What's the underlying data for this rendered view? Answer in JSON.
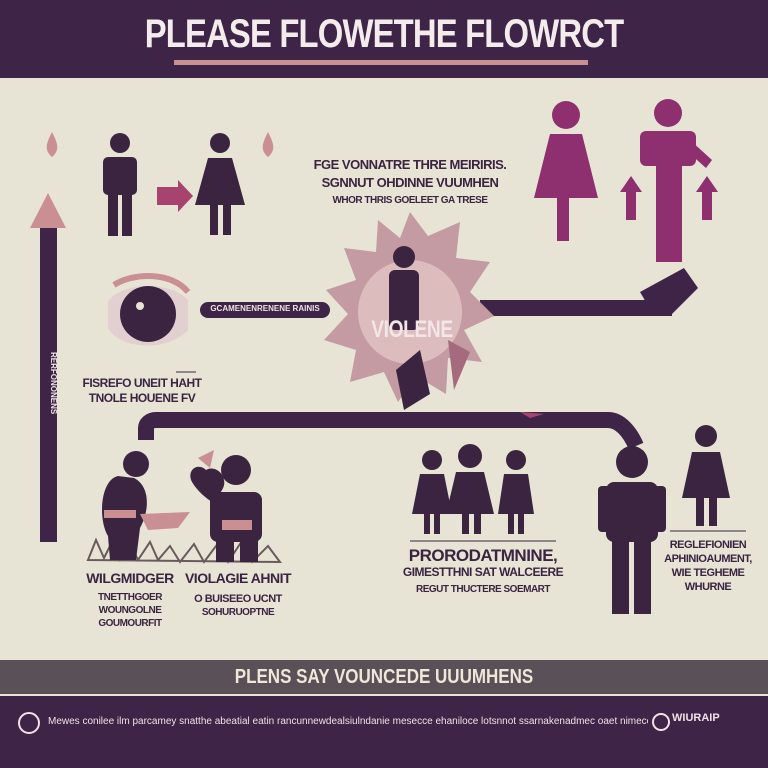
{
  "header": {
    "title": "PLEASE FLOWETHE FLOWRCT"
  },
  "top_text": {
    "lines": [
      "FGE VONNATRE THRE MEIRIRIS.",
      "SGNNUT OHDINNE VUUMHEN",
      "WHOR THRIS GOELEET GA TRESE"
    ]
  },
  "center_label": "VIOLENE",
  "pill_label": "GCAMENENRENENE RAINIS",
  "left_text": {
    "lines": [
      "FISREFO UNEIT HAHT",
      "TNOLE HOUENE FV"
    ]
  },
  "left_axis_label": "RERFONONENS",
  "bottom_left_text": {
    "title": "WILGMIDGER",
    "lines": [
      "TNETTHGOER",
      "WOUNGOLNE",
      "GOUMOURFIT"
    ]
  },
  "bottom_mid_text": {
    "title": "VIOLAGIE AHNIT",
    "lines": [
      "O BUISEEO UCNT",
      "SOHURUOPTNE"
    ]
  },
  "center_bottom_text": {
    "title": "PRORODATMNINE,",
    "lines": [
      "GIMESTTHNI SAT WALCEERE",
      "REGUT THUCTERE SOEMART"
    ]
  },
  "right_text": {
    "lines": [
      "REGLEFIONIEN",
      "APHINIOAUMENT,",
      "WIE TEGHEME",
      "WHURNE"
    ]
  },
  "band": {
    "text": "PLENS SAY VOUNCEDE UUUMHENS"
  },
  "footer": {
    "text": "Mewes conilee ilm parcamey snatthe abeatial eatin rancunnewdealsiulndanie mesecce ehaniloce lotsnnot ssarnakenadmec oaet nimeccooninat",
    "brand": "WIURAIP"
  },
  "colors": {
    "dark_purple": "#3e2446",
    "figure": "#3b2440",
    "magenta": "#8e2f6f",
    "pink": "#c98f93",
    "background": "#e7e4d6"
  }
}
